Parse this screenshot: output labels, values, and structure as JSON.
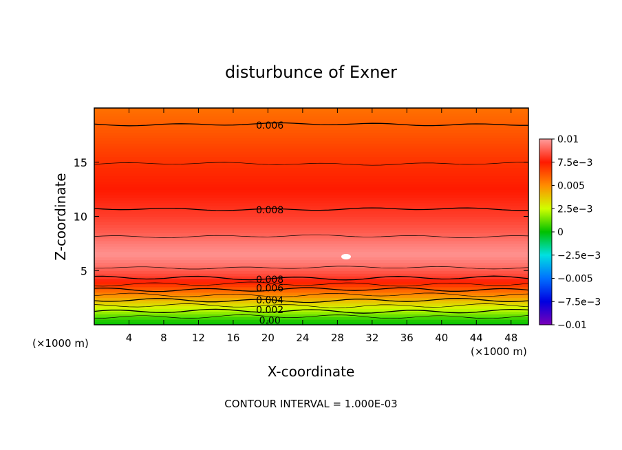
{
  "chart_data": {
    "type": "heatmap",
    "title": "disturbunce of Exner",
    "xlabel": "X-coordinate",
    "ylabel": "Z-coordinate",
    "x_unit_left": "(×1000 m)",
    "x_unit_right": "(×1000 m)",
    "footer": "CONTOUR INTERVAL = 1.000E-03",
    "xlim": [
      0,
      50
    ],
    "ylim": [
      0,
      20
    ],
    "x_ticks": [
      4,
      8,
      12,
      16,
      20,
      24,
      28,
      32,
      36,
      40,
      44,
      48
    ],
    "y_ticks": [
      5,
      10,
      15
    ],
    "colorbar": {
      "range": [
        -0.01,
        0.01
      ],
      "tick_labels": [
        "0.01",
        "7.5e−3",
        "0.005",
        "2.5e−3",
        "0",
        "−2.5e−3",
        "−0.005",
        "−7.5e−3",
        "−0.01"
      ],
      "tick_values": [
        0.01,
        0.0075,
        0.005,
        0.0025,
        0,
        -0.0025,
        -0.005,
        -0.0075,
        -0.01
      ],
      "stops": [
        {
          "v": -0.01,
          "c": "#7a00b8"
        },
        {
          "v": -0.0075,
          "c": "#0000e0"
        },
        {
          "v": -0.005,
          "c": "#0070ff"
        },
        {
          "v": -0.0025,
          "c": "#00e0e0"
        },
        {
          "v": 0,
          "c": "#00c000"
        },
        {
          "v": 0.0025,
          "c": "#d0ff00"
        },
        {
          "v": 0.005,
          "c": "#ff8c00"
        },
        {
          "v": 0.0075,
          "c": "#ff1a00"
        },
        {
          "v": 0.01,
          "c": "#ff9c9c"
        }
      ]
    },
    "profile": [
      {
        "z": 0.0,
        "v": 0.0
      },
      {
        "z": 0.5,
        "v": 0.0005
      },
      {
        "z": 1.0,
        "v": 0.0015
      },
      {
        "z": 1.5,
        "v": 0.0025
      },
      {
        "z": 2.0,
        "v": 0.0035
      },
      {
        "z": 2.5,
        "v": 0.0045
      },
      {
        "z": 3.0,
        "v": 0.0055
      },
      {
        "z": 3.5,
        "v": 0.0065
      },
      {
        "z": 4.0,
        "v": 0.0075
      },
      {
        "z": 4.5,
        "v": 0.0083
      },
      {
        "z": 5.5,
        "v": 0.0092
      },
      {
        "z": 6.5,
        "v": 0.0098
      },
      {
        "z": 7.5,
        "v": 0.0094
      },
      {
        "z": 8.5,
        "v": 0.0088
      },
      {
        "z": 10.0,
        "v": 0.0082
      },
      {
        "z": 12.0,
        "v": 0.0076
      },
      {
        "z": 14.5,
        "v": 0.0071
      },
      {
        "z": 17.0,
        "v": 0.0064
      },
      {
        "z": 18.5,
        "v": 0.006
      },
      {
        "z": 20.0,
        "v": 0.0056
      }
    ],
    "contour_labels": [
      {
        "text": "0.006",
        "x": 18,
        "z": 18.4
      },
      {
        "text": "0.008",
        "x": 18,
        "z": 10.6
      },
      {
        "text": "0.008",
        "x": 18,
        "z": 4.2
      },
      {
        "text": "0.006",
        "x": 18,
        "z": 3.4
      },
      {
        "text": "0.004",
        "x": 18,
        "z": 2.3
      },
      {
        "text": "0.002",
        "x": 18,
        "z": 1.4
      },
      {
        "text": "0.00",
        "x": 18,
        "z": 0.4
      }
    ],
    "grid": false
  }
}
